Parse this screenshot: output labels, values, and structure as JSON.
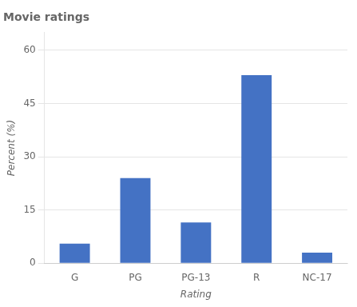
{
  "chart_data": {
    "type": "bar",
    "title": "Movie ratings",
    "xlabel": "Rating",
    "ylabel": "Percent (%)",
    "categories": [
      "G",
      "PG",
      "PG-13",
      "R",
      "NC-17"
    ],
    "values": [
      5.5,
      24.0,
      11.5,
      53.0,
      3.0
    ],
    "color": "#4472C4",
    "ylim": [
      0,
      65
    ],
    "yticks": [
      0,
      15,
      30,
      45,
      60
    ],
    "grid": true
  }
}
